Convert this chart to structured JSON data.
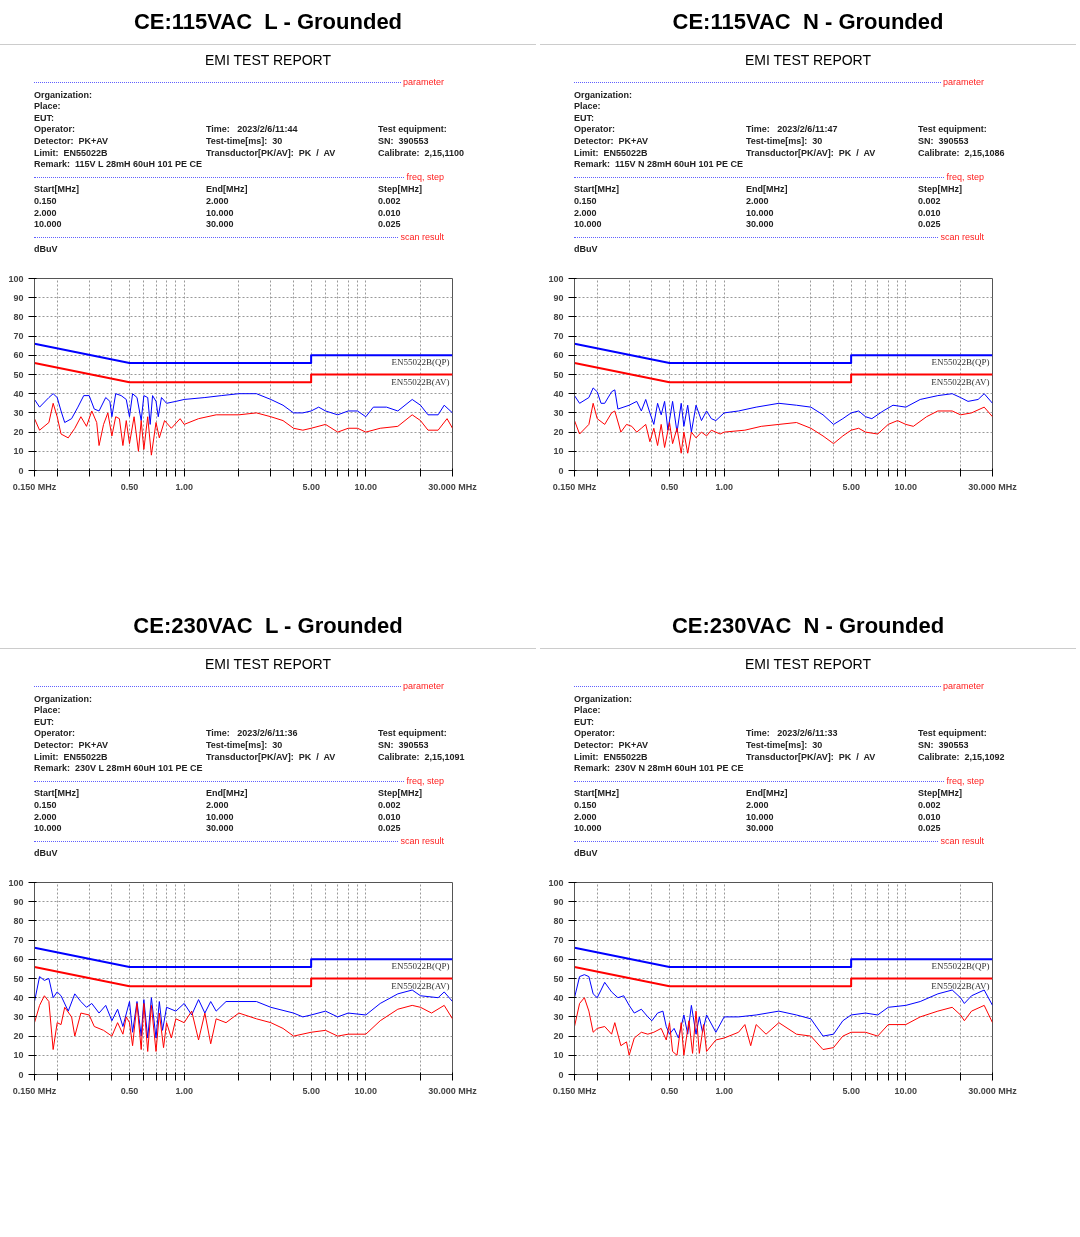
{
  "chart_data": [
    {
      "type": "line",
      "title": "CE:115VAC  L - Grounded",
      "subtitle": "EMI TEST REPORT",
      "ylabel": "dBuV",
      "log": "x",
      "grid": true,
      "marker": "none",
      "line_style": "solid",
      "xlim": [
        0.15,
        30
      ],
      "ylim": [
        0,
        100
      ],
      "xticks": [
        {
          "value": 0.15,
          "label": "0.150 MHz"
        },
        {
          "value": 0.2,
          "label": null
        },
        {
          "value": 0.3,
          "label": null
        },
        {
          "value": 0.4,
          "label": null
        },
        {
          "value": 0.5,
          "label": "0.50"
        },
        {
          "value": 0.6,
          "label": null
        },
        {
          "value": 0.7,
          "label": null
        },
        {
          "value": 0.8,
          "label": null
        },
        {
          "value": 0.9,
          "label": null
        },
        {
          "value": 1,
          "label": "1.00"
        },
        {
          "value": 2,
          "label": null
        },
        {
          "value": 3,
          "label": null
        },
        {
          "value": 4,
          "label": null
        },
        {
          "value": 5,
          "label": "5.00"
        },
        {
          "value": 6,
          "label": null
        },
        {
          "value": 7,
          "label": null
        },
        {
          "value": 8,
          "label": null
        },
        {
          "value": 9,
          "label": null
        },
        {
          "value": 10,
          "label": "10.00"
        },
        {
          "value": 20,
          "label": null
        },
        {
          "value": 30,
          "label": "30.000 MHz"
        }
      ],
      "yticks": [
        0,
        10,
        20,
        30,
        40,
        50,
        60,
        70,
        80,
        90,
        100
      ],
      "annotations": [
        "parameter",
        "Organization:",
        "Place:",
        "EUT:",
        "Operator:",
        "Time:   2023/2/6/11:44",
        "Test equipment:",
        "Detector:  PK+AV",
        "Test-time[ms]:  30",
        "SN:  390553",
        "Limit:  EN55022B",
        "Transductor[PK/AV]:  PK  /  AV",
        "Calibrate:  2,15,1100",
        "Remark:  115V L 28mH 60uH 101 PE CE",
        "freq, step",
        "Start[MHz]",
        "End[MHz]",
        "Step[MHz]",
        "0.150",
        "2.000",
        "0.002",
        "2.000",
        "10.000",
        "0.010",
        "10.000",
        "30.000",
        "0.025",
        "scan result"
      ],
      "series": [
        {
          "name": "EN55022B(QP)",
          "color": "#0000ff",
          "x": [
            0.15,
            0.5,
            5,
            5,
            30
          ],
          "values": [
            66,
            56,
            56,
            60,
            60
          ]
        },
        {
          "name": "EN55022B(AV)",
          "color": "#ff0000",
          "x": [
            0.15,
            0.5,
            5,
            5,
            30
          ],
          "values": [
            56,
            46,
            46,
            50,
            50
          ]
        },
        {
          "color": "#0000ff",
          "x": [
            0.15,
            0.16,
            0.18,
            0.19,
            0.2,
            0.21,
            0.22,
            0.24,
            0.26,
            0.28,
            0.3,
            0.32,
            0.34,
            0.37,
            0.39,
            0.4,
            0.42,
            0.45,
            0.48,
            0.5,
            0.52,
            0.55,
            0.58,
            0.6,
            0.63,
            0.65,
            0.67,
            0.7,
            0.72,
            0.75,
            0.8,
            0.9,
            1.0,
            1.3,
            1.6,
            2.0,
            2.5,
            3.0,
            3.5,
            4.0,
            4.5,
            5.0,
            5.5,
            6.0,
            7.0,
            8.0,
            9.0,
            10,
            11,
            13,
            15,
            18,
            20,
            22,
            25,
            27,
            30
          ],
          "values": [
            37,
            33,
            38,
            40,
            38,
            31,
            25,
            27,
            33,
            39,
            39,
            32,
            31,
            38,
            36,
            28,
            40,
            39,
            37,
            28,
            40,
            38,
            26,
            39,
            38,
            24,
            39,
            36,
            28,
            38,
            35,
            36,
            37,
            38,
            39,
            40,
            40,
            37,
            34,
            30,
            30,
            31,
            33,
            31,
            29,
            31,
            31,
            28,
            33,
            33,
            31,
            37,
            34,
            29,
            29,
            34,
            30
          ]
        },
        {
          "color": "#ff0000",
          "x": [
            0.15,
            0.16,
            0.18,
            0.19,
            0.2,
            0.21,
            0.23,
            0.25,
            0.27,
            0.29,
            0.31,
            0.33,
            0.34,
            0.36,
            0.38,
            0.4,
            0.42,
            0.44,
            0.46,
            0.48,
            0.5,
            0.53,
            0.56,
            0.58,
            0.6,
            0.63,
            0.66,
            0.7,
            0.73,
            0.78,
            0.85,
            0.95,
            1.0,
            1.2,
            1.5,
            2.0,
            2.5,
            3.0,
            3.5,
            4.0,
            4.5,
            5.0,
            6.0,
            7.0,
            8.0,
            9.0,
            10,
            12,
            15,
            18,
            20,
            22,
            25,
            28,
            30
          ],
          "values": [
            27,
            21,
            25,
            35,
            28,
            19,
            17,
            22,
            28,
            23,
            31,
            25,
            13,
            24,
            30,
            18,
            28,
            27,
            13,
            26,
            14,
            28,
            10,
            26,
            11,
            28,
            8,
            25,
            17,
            26,
            22,
            27,
            24,
            27,
            29,
            29,
            30,
            28,
            26,
            22,
            21,
            22,
            24,
            20,
            22,
            22,
            20,
            22,
            23,
            29,
            26,
            21,
            21,
            27,
            22
          ]
        }
      ]
    },
    {
      "type": "line",
      "title": "CE:115VAC  N - Grounded",
      "subtitle": "EMI TEST REPORT",
      "ylabel": "dBuV",
      "log": "x",
      "grid": true,
      "marker": "none",
      "line_style": "solid",
      "xlim": [
        0.15,
        30
      ],
      "ylim": [
        0,
        100
      ],
      "xticks": [
        {
          "value": 0.15,
          "label": "0.150 MHz"
        },
        {
          "value": 0.2,
          "label": null
        },
        {
          "value": 0.3,
          "label": null
        },
        {
          "value": 0.4,
          "label": null
        },
        {
          "value": 0.5,
          "label": "0.50"
        },
        {
          "value": 0.6,
          "label": null
        },
        {
          "value": 0.7,
          "label": null
        },
        {
          "value": 0.8,
          "label": null
        },
        {
          "value": 0.9,
          "label": null
        },
        {
          "value": 1,
          "label": "1.00"
        },
        {
          "value": 2,
          "label": null
        },
        {
          "value": 3,
          "label": null
        },
        {
          "value": 4,
          "label": null
        },
        {
          "value": 5,
          "label": "5.00"
        },
        {
          "value": 6,
          "label": null
        },
        {
          "value": 7,
          "label": null
        },
        {
          "value": 8,
          "label": null
        },
        {
          "value": 9,
          "label": null
        },
        {
          "value": 10,
          "label": "10.00"
        },
        {
          "value": 20,
          "label": null
        },
        {
          "value": 30,
          "label": "30.000 MHz"
        }
      ],
      "yticks": [
        0,
        10,
        20,
        30,
        40,
        50,
        60,
        70,
        80,
        90,
        100
      ],
      "annotations": [
        "parameter",
        "Organization:",
        "Place:",
        "EUT:",
        "Operator:",
        "Time:   2023/2/6/11:47",
        "Test equipment:",
        "Detector:  PK+AV",
        "Test-time[ms]:  30",
        "SN:  390553",
        "Limit:  EN55022B",
        "Transductor[PK/AV]:  PK  /  AV",
        "Calibrate:  2,15,1086",
        "Remark:  115V N 28mH 60uH 101 PE CE",
        "freq, step",
        "Start[MHz]",
        "End[MHz]",
        "Step[MHz]",
        "0.150",
        "2.000",
        "0.002",
        "2.000",
        "10.000",
        "0.010",
        "10.000",
        "30.000",
        "0.025",
        "scan result"
      ],
      "series": [
        {
          "name": "EN55022B(QP)",
          "color": "#0000ff",
          "x": [
            0.15,
            0.5,
            5,
            5,
            30
          ],
          "values": [
            66,
            56,
            56,
            60,
            60
          ]
        },
        {
          "name": "EN55022B(AV)",
          "color": "#ff0000",
          "x": [
            0.15,
            0.5,
            5,
            5,
            30
          ],
          "values": [
            56,
            46,
            46,
            50,
            50
          ]
        },
        {
          "color": "#0000ff",
          "x": [
            0.15,
            0.16,
            0.18,
            0.19,
            0.2,
            0.21,
            0.22,
            0.24,
            0.25,
            0.26,
            0.3,
            0.33,
            0.35,
            0.37,
            0.39,
            0.41,
            0.43,
            0.45,
            0.47,
            0.49,
            0.52,
            0.55,
            0.58,
            0.6,
            0.63,
            0.66,
            0.7,
            0.75,
            0.8,
            0.85,
            0.9,
            1.0,
            1.2,
            1.5,
            2.0,
            2.5,
            3.0,
            3.5,
            4.0,
            4.5,
            5.0,
            5.5,
            6.0,
            6.5,
            7.5,
            8.5,
            10,
            12,
            15,
            18,
            20,
            22,
            25,
            27,
            30
          ],
          "values": [
            39,
            35,
            38,
            43,
            41,
            35,
            35,
            41,
            42,
            32,
            34,
            36,
            31,
            37,
            30,
            24,
            35,
            29,
            36,
            21,
            36,
            20,
            35,
            23,
            34,
            20,
            34,
            26,
            31,
            27,
            26,
            30,
            31,
            33,
            35,
            34,
            33,
            29,
            24,
            27,
            30,
            31,
            28,
            27,
            31,
            34,
            33,
            37,
            39,
            40,
            38,
            36,
            37,
            40,
            35
          ]
        },
        {
          "color": "#ff0000",
          "x": [
            0.15,
            0.16,
            0.18,
            0.19,
            0.2,
            0.22,
            0.24,
            0.25,
            0.27,
            0.29,
            0.31,
            0.33,
            0.35,
            0.37,
            0.39,
            0.41,
            0.43,
            0.45,
            0.47,
            0.5,
            0.52,
            0.55,
            0.58,
            0.6,
            0.63,
            0.66,
            0.7,
            0.75,
            0.8,
            0.85,
            0.95,
            1.0,
            1.3,
            1.6,
            2.0,
            2.5,
            3.0,
            3.5,
            4.0,
            4.5,
            5.0,
            5.5,
            6.0,
            7.0,
            8.0,
            9.0,
            10,
            11,
            13,
            15,
            18,
            20,
            23,
            27,
            30
          ],
          "values": [
            26,
            19,
            24,
            35,
            27,
            24,
            30,
            31,
            20,
            24,
            23,
            20,
            22,
            24,
            15,
            22,
            13,
            24,
            12,
            25,
            14,
            22,
            9,
            20,
            9,
            20,
            17,
            20,
            18,
            21,
            19,
            20,
            21,
            23,
            24,
            25,
            22,
            18,
            14,
            18,
            21,
            22,
            20,
            19,
            24,
            26,
            24,
            23,
            28,
            31,
            31,
            29,
            30,
            33,
            28
          ]
        }
      ]
    },
    {
      "type": "line",
      "title": "CE:230VAC  L - Grounded",
      "subtitle": "EMI TEST REPORT",
      "ylabel": "dBuV",
      "log": "x",
      "grid": true,
      "marker": "none",
      "line_style": "solid",
      "xlim": [
        0.15,
        30
      ],
      "ylim": [
        0,
        100
      ],
      "xticks": [
        {
          "value": 0.15,
          "label": "0.150 MHz"
        },
        {
          "value": 0.2,
          "label": null
        },
        {
          "value": 0.3,
          "label": null
        },
        {
          "value": 0.4,
          "label": null
        },
        {
          "value": 0.5,
          "label": "0.50"
        },
        {
          "value": 0.6,
          "label": null
        },
        {
          "value": 0.7,
          "label": null
        },
        {
          "value": 0.8,
          "label": null
        },
        {
          "value": 0.9,
          "label": null
        },
        {
          "value": 1,
          "label": "1.00"
        },
        {
          "value": 2,
          "label": null
        },
        {
          "value": 3,
          "label": null
        },
        {
          "value": 4,
          "label": null
        },
        {
          "value": 5,
          "label": "5.00"
        },
        {
          "value": 6,
          "label": null
        },
        {
          "value": 7,
          "label": null
        },
        {
          "value": 8,
          "label": null
        },
        {
          "value": 9,
          "label": null
        },
        {
          "value": 10,
          "label": "10.00"
        },
        {
          "value": 20,
          "label": null
        },
        {
          "value": 30,
          "label": "30.000 MHz"
        }
      ],
      "yticks": [
        0,
        10,
        20,
        30,
        40,
        50,
        60,
        70,
        80,
        90,
        100
      ],
      "annotations": [
        "parameter",
        "Organization:",
        "Place:",
        "EUT:",
        "Operator:",
        "Time:   2023/2/6/11:36",
        "Test equipment:",
        "Detector:  PK+AV",
        "Test-time[ms]:  30",
        "SN:  390553",
        "Limit:  EN55022B",
        "Transductor[PK/AV]:  PK  /  AV",
        "Calibrate:  2,15,1091",
        "Remark:  230V L 28mH 60uH 101 PE CE",
        "freq, step",
        "Start[MHz]",
        "End[MHz]",
        "Step[MHz]",
        "0.150",
        "2.000",
        "0.002",
        "2.000",
        "10.000",
        "0.010",
        "10.000",
        "30.000",
        "0.025",
        "scan result"
      ],
      "series": [
        {
          "name": "EN55022B(QP)",
          "color": "#0000ff",
          "x": [
            0.15,
            0.5,
            5,
            5,
            30
          ],
          "values": [
            66,
            56,
            56,
            60,
            60
          ]
        },
        {
          "name": "EN55022B(AV)",
          "color": "#ff0000",
          "x": [
            0.15,
            0.5,
            5,
            5,
            30
          ],
          "values": [
            56,
            46,
            46,
            50,
            50
          ]
        },
        {
          "color": "#0000ff",
          "x": [
            0.15,
            0.16,
            0.17,
            0.18,
            0.19,
            0.2,
            0.21,
            0.23,
            0.25,
            0.27,
            0.29,
            0.31,
            0.34,
            0.37,
            0.4,
            0.43,
            0.46,
            0.5,
            0.52,
            0.55,
            0.58,
            0.6,
            0.63,
            0.66,
            0.7,
            0.73,
            0.76,
            0.8,
            0.9,
            1.0,
            1.1,
            1.2,
            1.3,
            1.4,
            1.5,
            1.7,
            2.0,
            2.5,
            3.0,
            4.0,
            4.5,
            5.0,
            6.0,
            7.0,
            8.0,
            10,
            12,
            15,
            18,
            20,
            25,
            27,
            30
          ],
          "values": [
            38,
            51,
            49,
            50,
            40,
            43,
            41,
            33,
            42,
            38,
            35,
            37,
            32,
            36,
            28,
            34,
            25,
            38,
            22,
            38,
            20,
            39,
            19,
            40,
            19,
            38,
            23,
            35,
            33,
            37,
            31,
            39,
            32,
            38,
            33,
            38,
            38,
            38,
            35,
            32,
            30,
            31,
            33,
            30,
            32,
            31,
            37,
            42,
            44,
            41,
            40,
            43,
            38
          ]
        },
        {
          "color": "#ff0000",
          "x": [
            0.15,
            0.16,
            0.17,
            0.18,
            0.19,
            0.2,
            0.21,
            0.22,
            0.24,
            0.25,
            0.27,
            0.3,
            0.32,
            0.36,
            0.4,
            0.43,
            0.46,
            0.48,
            0.5,
            0.52,
            0.55,
            0.58,
            0.6,
            0.63,
            0.66,
            0.7,
            0.73,
            0.77,
            0.8,
            0.85,
            0.9,
            1.0,
            1.1,
            1.2,
            1.3,
            1.4,
            1.5,
            1.7,
            2.0,
            2.5,
            3.0,
            3.5,
            4.0,
            5.0,
            6.0,
            7.0,
            8.0,
            10,
            12,
            15,
            18,
            20,
            23,
            27,
            30
          ],
          "values": [
            27,
            36,
            41,
            38,
            13,
            27,
            26,
            35,
            30,
            20,
            32,
            31,
            25,
            23,
            20,
            27,
            21,
            30,
            27,
            15,
            37,
            13,
            37,
            12,
            36,
            12,
            32,
            14,
            27,
            19,
            29,
            27,
            33,
            18,
            32,
            16,
            29,
            27,
            32,
            29,
            27,
            24,
            20,
            22,
            23,
            20,
            21,
            21,
            28,
            34,
            36,
            35,
            32,
            36,
            29
          ]
        }
      ]
    },
    {
      "type": "line",
      "title": "CE:230VAC  N - Grounded",
      "subtitle": "EMI TEST REPORT",
      "ylabel": "dBuV",
      "log": "x",
      "grid": true,
      "marker": "none",
      "line_style": "solid",
      "xlim": [
        0.15,
        30
      ],
      "ylim": [
        0,
        100
      ],
      "xticks": [
        {
          "value": 0.15,
          "label": "0.150 MHz"
        },
        {
          "value": 0.2,
          "label": null
        },
        {
          "value": 0.3,
          "label": null
        },
        {
          "value": 0.4,
          "label": null
        },
        {
          "value": 0.5,
          "label": "0.50"
        },
        {
          "value": 0.6,
          "label": null
        },
        {
          "value": 0.7,
          "label": null
        },
        {
          "value": 0.8,
          "label": null
        },
        {
          "value": 0.9,
          "label": null
        },
        {
          "value": 1,
          "label": "1.00"
        },
        {
          "value": 2,
          "label": null
        },
        {
          "value": 3,
          "label": null
        },
        {
          "value": 4,
          "label": null
        },
        {
          "value": 5,
          "label": "5.00"
        },
        {
          "value": 6,
          "label": null
        },
        {
          "value": 7,
          "label": null
        },
        {
          "value": 8,
          "label": null
        },
        {
          "value": 9,
          "label": null
        },
        {
          "value": 10,
          "label": "10.00"
        },
        {
          "value": 20,
          "label": null
        },
        {
          "value": 30,
          "label": "30.000 MHz"
        }
      ],
      "yticks": [
        0,
        10,
        20,
        30,
        40,
        50,
        60,
        70,
        80,
        90,
        100
      ],
      "annotations": [
        "parameter",
        "Organization:",
        "Place:",
        "EUT:",
        "Operator:",
        "Time:   2023/2/6/11:33",
        "Test equipment:",
        "Detector:  PK+AV",
        "Test-time[ms]:  30",
        "SN:  390553",
        "Limit:  EN55022B",
        "Transductor[PK/AV]:  PK  /  AV",
        "Calibrate:  2,15,1092",
        "Remark:  230V N 28mH 60uH 101 PE CE",
        "freq, step",
        "Start[MHz]",
        "End[MHz]",
        "Step[MHz]",
        "0.150",
        "2.000",
        "0.002",
        "2.000",
        "10.000",
        "0.010",
        "10.000",
        "30.000",
        "0.025",
        "scan result"
      ],
      "series": [
        {
          "name": "EN55022B(QP)",
          "color": "#0000ff",
          "x": [
            0.15,
            0.5,
            5,
            5,
            30
          ],
          "values": [
            66,
            56,
            56,
            60,
            60
          ]
        },
        {
          "name": "EN55022B(AV)",
          "color": "#ff0000",
          "x": [
            0.15,
            0.5,
            5,
            5,
            30
          ],
          "values": [
            56,
            46,
            46,
            50,
            50
          ]
        },
        {
          "color": "#0000ff",
          "x": [
            0.15,
            0.16,
            0.17,
            0.18,
            0.19,
            0.2,
            0.21,
            0.22,
            0.24,
            0.26,
            0.28,
            0.3,
            0.32,
            0.35,
            0.38,
            0.4,
            0.43,
            0.46,
            0.48,
            0.5,
            0.53,
            0.56,
            0.6,
            0.63,
            0.66,
            0.7,
            0.73,
            0.76,
            0.8,
            0.9,
            1.0,
            1.2,
            1.5,
            2.0,
            2.5,
            3.0,
            3.5,
            4.0,
            4.5,
            5.0,
            6.0,
            7.0,
            8.0,
            10,
            12,
            15,
            18,
            20,
            21,
            23,
            27,
            30
          ],
          "values": [
            40,
            51,
            52,
            51,
            42,
            40,
            44,
            48,
            43,
            40,
            41,
            36,
            32,
            34,
            30,
            28,
            32,
            33,
            25,
            21,
            24,
            19,
            31,
            21,
            36,
            21,
            30,
            22,
            31,
            22,
            30,
            30,
            31,
            33,
            31,
            29,
            20,
            21,
            28,
            31,
            32,
            31,
            35,
            36,
            38,
            42,
            44,
            40,
            37,
            41,
            44,
            36
          ]
        },
        {
          "color": "#ff0000",
          "x": [
            0.15,
            0.16,
            0.17,
            0.18,
            0.19,
            0.2,
            0.22,
            0.24,
            0.25,
            0.27,
            0.29,
            0.3,
            0.32,
            0.35,
            0.38,
            0.41,
            0.45,
            0.48,
            0.5,
            0.52,
            0.55,
            0.58,
            0.6,
            0.64,
            0.67,
            0.7,
            0.73,
            0.77,
            0.8,
            0.9,
            1.0,
            1.2,
            1.3,
            1.4,
            1.5,
            1.7,
            2.0,
            2.5,
            3.0,
            3.5,
            4.0,
            4.5,
            5.0,
            6.0,
            7.0,
            8.0,
            10,
            12,
            15,
            18,
            20,
            21,
            23,
            27,
            30
          ],
          "values": [
            25,
            37,
            40,
            33,
            22,
            24,
            25,
            21,
            27,
            15,
            17,
            10,
            19,
            22,
            21,
            22,
            24,
            18,
            27,
            12,
            10,
            27,
            10,
            28,
            11,
            33,
            11,
            26,
            12,
            18,
            19,
            22,
            26,
            15,
            26,
            21,
            27,
            21,
            20,
            13,
            14,
            20,
            22,
            22,
            20,
            26,
            26,
            30,
            33,
            35,
            31,
            28,
            33,
            36,
            27
          ]
        }
      ]
    }
  ]
}
